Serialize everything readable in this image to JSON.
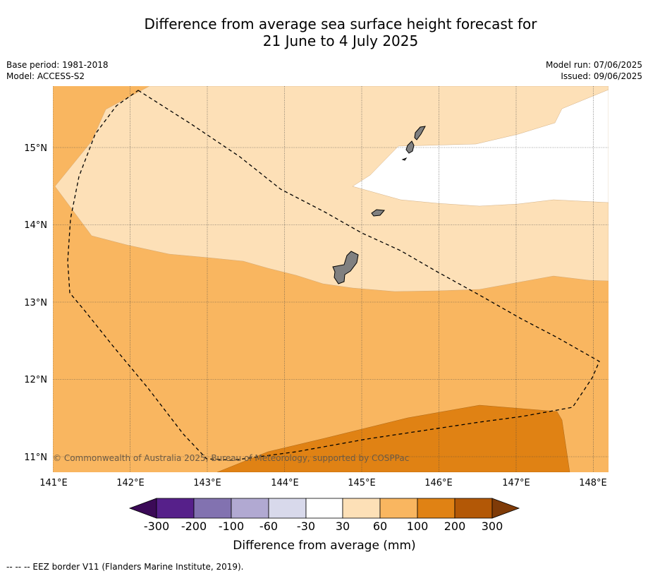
{
  "title": {
    "line1": "Difference from average sea surface height forecast for",
    "line2": "21 June to 4 July 2025"
  },
  "meta": {
    "base_period": "Base period: 1981-2018",
    "model": "Model: ACCESS-S2",
    "model_run": "Model run: 07/06/2025",
    "issued": "Issued: 09/06/2025"
  },
  "map": {
    "copyright": "© Commonwealth of Australia 2025, Bureau of Meteorology, supported by COSPPac",
    "lon_labels": [
      "141°E",
      "142°E",
      "143°E",
      "144°E",
      "145°E",
      "146°E",
      "147°E",
      "148°E"
    ],
    "lat_labels": [
      "15°N",
      "14°N",
      "13°N",
      "12°N",
      "11°N"
    ],
    "land_color": "#808080",
    "eez_style": "dashed black line"
  },
  "colorbar": {
    "label": "Difference from average (mm)",
    "ticks": [
      "-300",
      "-200",
      "-100",
      "-60",
      "-30",
      "30",
      "60",
      "100",
      "200",
      "300"
    ],
    "colors": [
      "#3b0a57",
      "#56208a",
      "#8272b0",
      "#b1a9d2",
      "#d8d9eb",
      "#ffffff",
      "#fde0b7",
      "#f9b660",
      "#e08214",
      "#b35806",
      "#7f3b08"
    ]
  },
  "footer": "--  --  -- EEZ border V11 (Flanders Marine Institute, 2019)."
}
